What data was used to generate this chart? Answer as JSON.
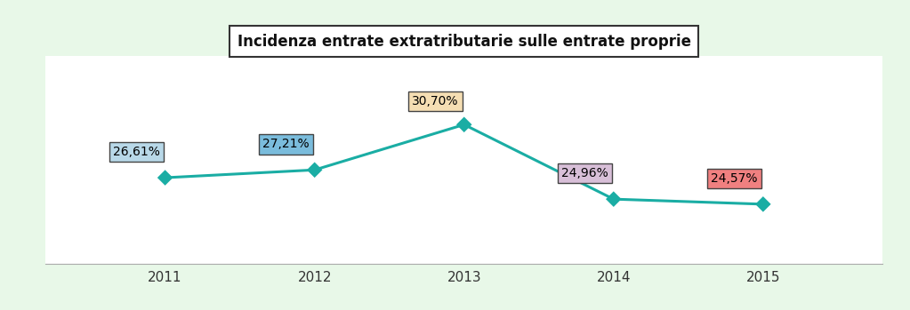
{
  "title": "Incidenza entrate extratributarie sulle entrate proprie",
  "years": [
    2011,
    2012,
    2013,
    2014,
    2015
  ],
  "values": [
    26.61,
    27.21,
    30.7,
    24.96,
    24.57
  ],
  "labels": [
    "26,61%",
    "27,21%",
    "30,70%",
    "24,96%",
    "24,57%"
  ],
  "line_color": "#1AADA4",
  "marker_color": "#1AADA4",
  "label_bg_colors": [
    "#B8D8E8",
    "#7ABCDC",
    "#F5DEB3",
    "#D8BFD8",
    "#F08080"
  ],
  "label_text_color": "#000000",
  "background_color": "#E8F8E8",
  "plot_bg_color": "#FFFFFF",
  "title_box_facecolor": "#FFFFFF",
  "title_fontsize": 12,
  "label_fontsize": 10,
  "ylim": [
    20,
    36
  ],
  "grid_color": "#CCCCCC",
  "label_offsets_x": [
    -0.35,
    -0.35,
    -0.35,
    -0.35,
    -0.35
  ],
  "label_offsets_y": [
    1.5,
    1.5,
    1.3,
    1.5,
    1.5
  ]
}
